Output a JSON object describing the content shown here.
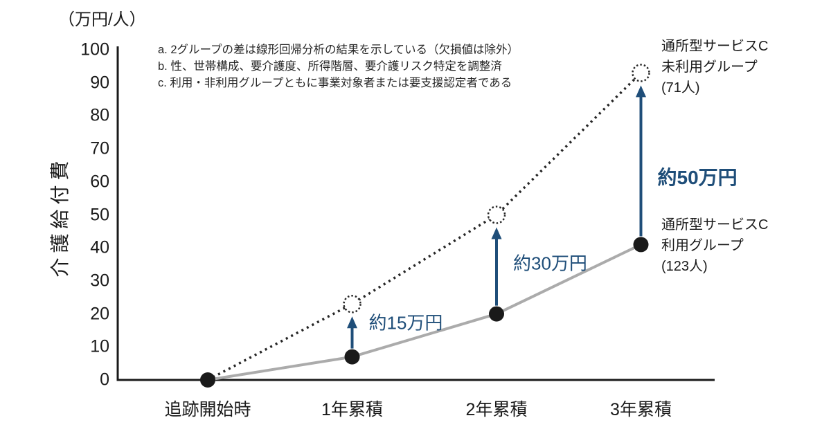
{
  "unit_label": "（万円/人）",
  "ylabel": "介護給付費",
  "notes": [
    "a. 2グループの差は線形回帰分析の結果を示している（欠損値は除外）",
    "b. 性、世帯構成、要介護度、所得階層、要介護リスク特定を調整済",
    "c. 利用・非利用グループともに事業対象者または要支援認定者である"
  ],
  "colors": {
    "navy_accent": "#1f4e79",
    "gray_line": "#ababab",
    "dotted_line": "#262626",
    "axis_black": "#1a1a1a",
    "marker_fill": "#1a1a1a",
    "open_marker_fill": "#ffffff"
  },
  "chart_data": {
    "type": "line",
    "title": "",
    "xlabel": "",
    "ylabel": "介護給付費",
    "y_unit": "（万円/人）",
    "ylim": [
      0,
      100
    ],
    "ytick_step": 10,
    "grid": false,
    "legend_position": "right-labels",
    "categories": [
      "追跡開始時",
      "1年累積",
      "2年累積",
      "3年累積"
    ],
    "series": [
      {
        "name": "通所型サービスC未利用グループ（71人）",
        "n": 71,
        "values": [
          0,
          23,
          50,
          93
        ],
        "line_style": "dotted",
        "marker": "open-dotted-circle",
        "color": "#262626"
      },
      {
        "name": "通所型サービスC利用グループ（123人）",
        "n": 123,
        "values": [
          0,
          7,
          20,
          41
        ],
        "line_style": "solid",
        "marker": "filled-circle",
        "color": "#ababab"
      }
    ],
    "annotations": [
      {
        "category_index": 1,
        "label": "約15万円",
        "difference_value": 15,
        "bold": false
      },
      {
        "category_index": 2,
        "label": "約30万円",
        "difference_value": 30,
        "bold": false
      },
      {
        "category_index": 3,
        "label": "約50万円",
        "difference_value": 50,
        "bold": true
      }
    ]
  },
  "series_labels": {
    "unused": [
      "通所型サービスC",
      "未利用グループ",
      "(71人)"
    ],
    "used": [
      "通所型サービスC",
      "利用グループ",
      "(123人)"
    ]
  }
}
